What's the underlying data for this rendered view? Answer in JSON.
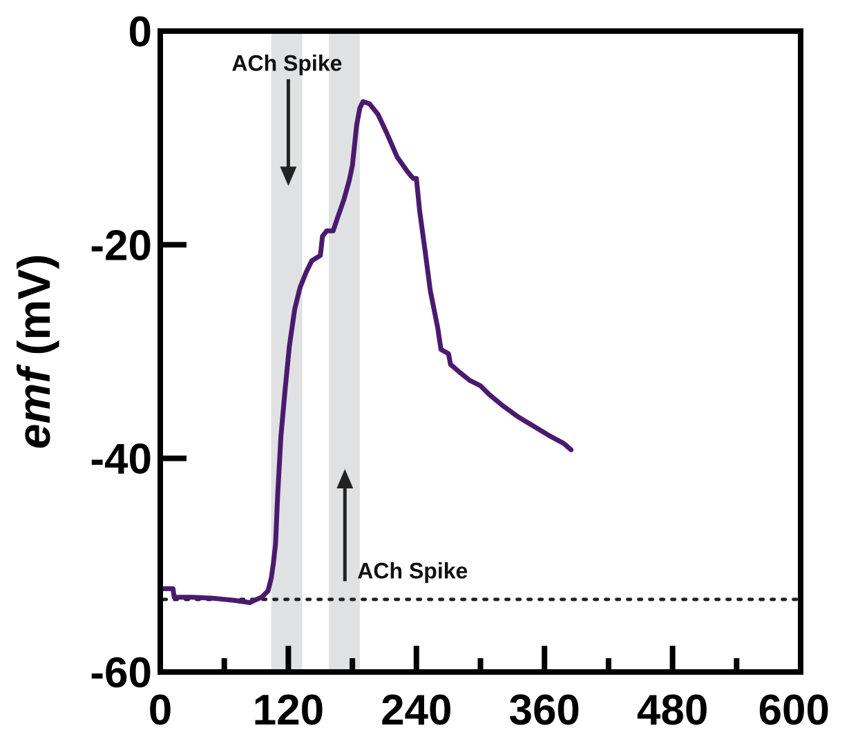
{
  "chart_data": {
    "type": "line",
    "title": "",
    "xlabel": "",
    "ylabel": {
      "italic_part": "emf",
      "rest": " (mV)"
    },
    "xlim": [
      0,
      600
    ],
    "ylim": [
      -60,
      0
    ],
    "x_ticks_labeled": [
      0,
      120,
      240,
      360,
      480,
      600
    ],
    "x_tick_labels": [
      "0",
      "120",
      "240",
      "360",
      "480",
      "600"
    ],
    "x_ticks_minor": [
      60,
      180,
      300,
      420,
      540
    ],
    "y_ticks": [
      0,
      -20,
      -40,
      -60
    ],
    "y_tick_labels": [
      "0",
      "-20",
      "-40",
      "-60"
    ],
    "grid": false,
    "colors": {
      "line": "#4b1a6e",
      "band": "#dfe1e3",
      "axis": "#000000",
      "arrow": "#222222"
    },
    "shaded_regions": [
      {
        "x0": 104,
        "x1": 133
      },
      {
        "x0": 158,
        "x1": 187
      }
    ],
    "baseline": {
      "y": -53.2,
      "style": "dotted"
    },
    "annotations": [
      {
        "text": "ACh Spike",
        "arrow_x": 120,
        "arrow_from_y": -4.5,
        "arrow_to_y": -14.5,
        "direction": "down",
        "label_position": "above-arrow"
      },
      {
        "text": "ACh Spike",
        "arrow_x": 173,
        "arrow_from_y": -51.5,
        "arrow_to_y": -41,
        "direction": "up",
        "label_position": "right-of-arrow-tail"
      }
    ],
    "series": [
      {
        "points": [
          [
            3,
            -52.2
          ],
          [
            12,
            -52.2
          ],
          [
            13,
            -53.0
          ],
          [
            30,
            -53.0
          ],
          [
            50,
            -53.1
          ],
          [
            70,
            -53.3
          ],
          [
            84,
            -53.5
          ],
          [
            88,
            -53.3
          ],
          [
            95,
            -53.0
          ],
          [
            101,
            -52.4
          ],
          [
            104,
            -51.2
          ],
          [
            106,
            -49.8
          ],
          [
            108,
            -48.0
          ],
          [
            110,
            -43.5
          ],
          [
            113,
            -38.0
          ],
          [
            117,
            -33.5
          ],
          [
            121,
            -29.5
          ],
          [
            126,
            -26.0
          ],
          [
            131,
            -24.0
          ],
          [
            137,
            -22.5
          ],
          [
            142,
            -21.5
          ],
          [
            150,
            -21.0
          ],
          [
            152,
            -19.2
          ],
          [
            156,
            -18.7
          ],
          [
            162,
            -18.7
          ],
          [
            166,
            -17.5
          ],
          [
            172,
            -15.8
          ],
          [
            177,
            -14.0
          ],
          [
            180,
            -12.6
          ],
          [
            184,
            -8.8
          ],
          [
            187,
            -7.2
          ],
          [
            190,
            -6.6
          ],
          [
            196,
            -6.8
          ],
          [
            204,
            -7.8
          ],
          [
            212,
            -9.5
          ],
          [
            222,
            -11.8
          ],
          [
            232,
            -13.2
          ],
          [
            237,
            -13.8
          ],
          [
            240,
            -13.8
          ],
          [
            243,
            -16.8
          ],
          [
            248,
            -20.5
          ],
          [
            253,
            -24.3
          ],
          [
            260,
            -27.8
          ],
          [
            263,
            -29.8
          ],
          [
            270,
            -30.2
          ],
          [
            272,
            -31.2
          ],
          [
            280,
            -31.9
          ],
          [
            290,
            -32.7
          ],
          [
            300,
            -33.2
          ],
          [
            308,
            -34.0
          ],
          [
            320,
            -35.0
          ],
          [
            335,
            -36.1
          ],
          [
            350,
            -37.0
          ],
          [
            365,
            -37.9
          ],
          [
            378,
            -38.6
          ],
          [
            385,
            -39.2
          ]
        ]
      }
    ]
  }
}
